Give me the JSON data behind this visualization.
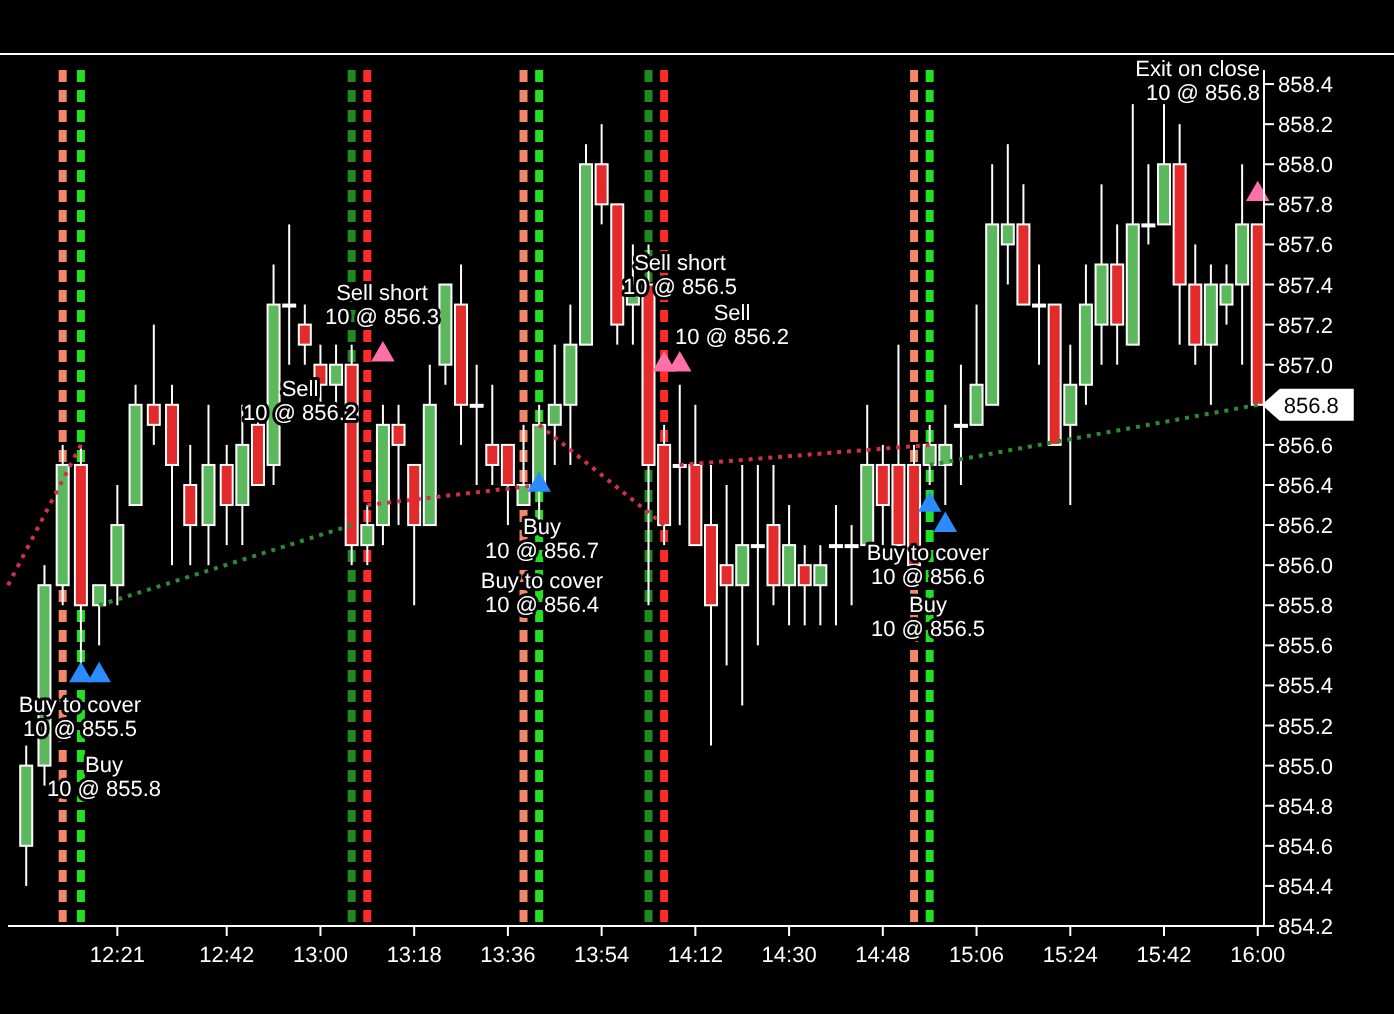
{
  "chart_data": {
    "type": "candlestick",
    "x": [
      12.0583,
      12.1167,
      12.175,
      12.2333,
      12.2917,
      12.35,
      12.4083,
      12.4667,
      12.525,
      12.5833,
      12.6417,
      12.7,
      12.75,
      12.8,
      12.85,
      12.9,
      12.95,
      13,
      13.05,
      13.1,
      13.15,
      13.2,
      13.25,
      13.3,
      13.35,
      13.4,
      13.45,
      13.5,
      13.55,
      13.6,
      13.65,
      13.7,
      13.75,
      13.8,
      13.85,
      13.9,
      13.95,
      14,
      14.05,
      14.1,
      14.15,
      14.2,
      14.25,
      14.3,
      14.35,
      14.4,
      14.45,
      14.5,
      14.55,
      14.6,
      14.65,
      14.7,
      14.75,
      14.8,
      14.85,
      14.9,
      14.95,
      15,
      15.05,
      15.1,
      15.15,
      15.2,
      15.25,
      15.3,
      15.35,
      15.4,
      15.45,
      15.5,
      15.55,
      15.6,
      15.65,
      15.7,
      15.75,
      15.8,
      15.85,
      15.9,
      15.95,
      16
    ],
    "ohlc": [
      [
        854.6,
        855.1,
        854.4,
        855.0
      ],
      [
        855.0,
        856.0,
        854.9,
        855.9
      ],
      [
        855.9,
        856.6,
        855.8,
        856.5
      ],
      [
        856.5,
        856.6,
        855.5,
        855.8
      ],
      [
        855.8,
        855.9,
        855.6,
        855.9
      ],
      [
        855.9,
        856.4,
        855.8,
        856.2
      ],
      [
        856.3,
        856.9,
        856.3,
        856.8
      ],
      [
        856.8,
        857.2,
        856.6,
        856.7
      ],
      [
        856.8,
        856.9,
        856.0,
        856.5
      ],
      [
        856.4,
        856.6,
        856.0,
        856.2
      ],
      [
        856.2,
        856.8,
        856.0,
        856.5
      ],
      [
        856.5,
        856.6,
        856.1,
        856.3
      ],
      [
        856.3,
        856.8,
        856.1,
        856.6
      ],
      [
        856.7,
        856.8,
        856.4,
        856.4
      ],
      [
        856.5,
        857.5,
        856.4,
        857.3
      ],
      [
        857.3,
        857.7,
        857.0,
        857.3
      ],
      [
        857.2,
        857.3,
        857.0,
        857.1
      ],
      [
        857.0,
        857.1,
        856.8,
        856.9
      ],
      [
        856.9,
        857.1,
        856.8,
        857.0
      ],
      [
        857.0,
        857.1,
        856.0,
        856.1
      ],
      [
        856.1,
        856.3,
        856.0,
        856.2
      ],
      [
        856.2,
        856.8,
        856.1,
        856.7
      ],
      [
        856.7,
        856.8,
        856.2,
        856.6
      ],
      [
        856.5,
        856.5,
        855.8,
        856.2
      ],
      [
        856.2,
        857.0,
        856.2,
        856.8
      ],
      [
        857.0,
        857.4,
        856.9,
        857.4
      ],
      [
        857.3,
        857.5,
        856.6,
        856.8
      ],
      [
        856.8,
        857.0,
        856.4,
        856.8
      ],
      [
        856.6,
        856.9,
        856.4,
        856.5
      ],
      [
        856.6,
        856.6,
        856.2,
        856.4
      ],
      [
        856.3,
        856.7,
        856.3,
        856.4
      ],
      [
        856.4,
        856.8,
        856.2,
        856.7
      ],
      [
        856.7,
        857.1,
        856.5,
        856.8
      ],
      [
        856.8,
        857.3,
        856.5,
        857.1
      ],
      [
        857.1,
        858.1,
        857.1,
        858.0
      ],
      [
        858.0,
        858.2,
        857.7,
        857.8
      ],
      [
        857.8,
        857.8,
        857.1,
        857.2
      ],
      [
        857.3,
        857.6,
        857.1,
        857.4
      ],
      [
        857.4,
        857.6,
        855.8,
        856.5
      ],
      [
        856.6,
        856.7,
        856.1,
        856.2
      ],
      [
        856.5,
        856.9,
        856.2,
        856.5
      ],
      [
        856.5,
        856.8,
        856.1,
        856.1
      ],
      [
        856.2,
        856.5,
        855.1,
        855.8
      ],
      [
        856.0,
        856.4,
        855.5,
        855.9
      ],
      [
        855.9,
        856.5,
        855.3,
        856.1
      ],
      [
        856.1,
        856.5,
        855.6,
        856.1
      ],
      [
        856.2,
        856.5,
        855.8,
        855.9
      ],
      [
        855.9,
        856.3,
        855.7,
        856.1
      ],
      [
        856.0,
        856.1,
        855.7,
        855.9
      ],
      [
        855.9,
        856.1,
        855.7,
        856.0
      ],
      [
        856.1,
        856.3,
        855.7,
        856.1
      ],
      [
        856.1,
        856.2,
        855.8,
        856.1
      ],
      [
        856.1,
        856.8,
        856.1,
        856.5
      ],
      [
        856.5,
        856.6,
        856.1,
        856.3
      ],
      [
        856.5,
        857.1,
        856.1,
        856.1
      ],
      [
        856.5,
        856.6,
        855.9,
        856.0
      ],
      [
        856.5,
        856.7,
        856.4,
        856.6
      ],
      [
        856.5,
        856.8,
        856.3,
        856.6
      ],
      [
        856.7,
        857.0,
        856.4,
        856.7
      ],
      [
        856.7,
        857.3,
        856.7,
        856.9
      ],
      [
        856.8,
        858.0,
        856.8,
        857.7
      ],
      [
        857.6,
        858.1,
        857.4,
        857.7
      ],
      [
        857.7,
        857.9,
        857.3,
        857.3
      ],
      [
        857.3,
        857.5,
        857.0,
        857.3
      ],
      [
        857.3,
        857.3,
        856.6,
        856.6
      ],
      [
        856.7,
        857.1,
        856.3,
        856.9
      ],
      [
        856.9,
        857.5,
        856.8,
        857.3
      ],
      [
        857.2,
        857.9,
        857.0,
        857.5
      ],
      [
        857.5,
        857.7,
        857.0,
        857.2
      ],
      [
        857.1,
        858.3,
        857.1,
        857.7
      ],
      [
        857.7,
        858.0,
        857.6,
        857.7
      ],
      [
        857.7,
        858.3,
        857.7,
        858.0
      ],
      [
        858.0,
        858.2,
        857.1,
        857.4
      ],
      [
        857.4,
        857.6,
        857.0,
        857.1
      ],
      [
        857.1,
        857.5,
        856.8,
        857.4
      ],
      [
        857.3,
        857.5,
        857.2,
        857.4
      ],
      [
        857.4,
        858.0,
        857.0,
        857.7
      ],
      [
        857.7,
        857.7,
        856.8,
        856.8
      ]
    ],
    "colors": [
      "#5cb85c",
      "#5cb85c",
      "#5cb85c",
      "#e32b2b",
      "#5cb85c",
      "#5cb85c",
      "#5cb85c",
      "#e32b2b",
      "#e32b2b",
      "#e32b2b",
      "#5cb85c",
      "#e32b2b",
      "#5cb85c",
      "#e32b2b",
      "#5cb85c",
      "#5cb85c",
      "#e32b2b",
      "#e32b2b",
      "#5cb85c",
      "#e32b2b",
      "#5cb85c",
      "#5cb85c",
      "#e32b2b",
      "#e32b2b",
      "#5cb85c",
      "#5cb85c",
      "#e32b2b",
      "#5cb85c",
      "#e32b2b",
      "#e32b2b",
      "#5cb85c",
      "#5cb85c",
      "#5cb85c",
      "#5cb85c",
      "#5cb85c",
      "#e32b2b",
      "#e32b2b",
      "#5cb85c",
      "#e32b2b",
      "#e32b2b",
      "#5cb85c",
      "#e32b2b",
      "#e32b2b",
      "#e32b2b",
      "#5cb85c",
      "#5cb85c",
      "#e32b2b",
      "#5cb85c",
      "#e32b2b",
      "#5cb85c",
      "#5cb85c",
      "#5cb85c",
      "#5cb85c",
      "#e32b2b",
      "#e32b2b",
      "#e32b2b",
      "#5cb85c",
      "#5cb85c",
      "#5cb85c",
      "#5cb85c",
      "#5cb85c",
      "#5cb85c",
      "#e32b2b",
      "#5cb85c",
      "#e32b2b",
      "#5cb85c",
      "#5cb85c",
      "#5cb85c",
      "#e32b2b",
      "#5cb85c",
      "#5cb85c",
      "#5cb85c",
      "#e32b2b",
      "#e32b2b",
      "#5cb85c",
      "#5cb85c",
      "#5cb85c",
      "#e32b2b"
    ],
    "series": [
      {
        "type": "line",
        "color": "#d0304a",
        "line_style": "dotted",
        "x": [
          12.0,
          12.2333
        ],
        "values": [
          855.9,
          856.6
        ]
      },
      {
        "type": "line",
        "color": "#2e8b2e",
        "line_style": "dotted",
        "x": [
          12.2917,
          13.1
        ],
        "values": [
          855.8,
          856.2
        ]
      },
      {
        "type": "line",
        "color": "#d0304a",
        "line_style": "dotted",
        "x": [
          13.15,
          13.7
        ],
        "values": [
          856.3,
          856.4
        ]
      },
      {
        "type": "line",
        "color": "#d0304a",
        "line_style": "dotted",
        "x": [
          13.7,
          14.1
        ],
        "values": [
          856.7,
          856.2
        ]
      },
      {
        "type": "line",
        "color": "#d0304a",
        "line_style": "dotted",
        "x": [
          14.15,
          14.95
        ],
        "values": [
          856.5,
          856.6
        ]
      },
      {
        "type": "line",
        "color": "#2e8b2e",
        "line_style": "dotted",
        "x": [
          14.95,
          16.0
        ],
        "values": [
          856.5,
          856.8
        ]
      },
      {
        "type": "scatter",
        "color": "#2a8cff",
        "marker": "triangle",
        "x": [
          12.2333,
          12.2917,
          13.7,
          14.95,
          15.0
        ],
        "values": [
          855.45,
          855.45,
          856.4,
          856.3,
          856.2
        ]
      },
      {
        "type": "scatter",
        "color": "#ff6fa8",
        "marker": "triangle",
        "x": [
          13.2,
          14.1,
          14.15,
          16.0
        ],
        "values": [
          857.05,
          857.0,
          857.0,
          857.85
        ]
      }
    ],
    "xlim": [
      12.0,
      16.02
    ],
    "xticks": [
      {
        "value": 12.35,
        "label": "12:21"
      },
      {
        "value": 12.7,
        "label": "12:42"
      },
      {
        "value": 13,
        "label": "13:00"
      },
      {
        "value": 13.3,
        "label": "13:18"
      },
      {
        "value": 13.6,
        "label": "13:36"
      },
      {
        "value": 13.9,
        "label": "13:54"
      },
      {
        "value": 14.2,
        "label": "14:12"
      },
      {
        "value": 14.5,
        "label": "14:30"
      },
      {
        "value": 14.8,
        "label": "14:48"
      },
      {
        "value": 15.1,
        "label": "15:06"
      },
      {
        "value": 15.4,
        "label": "15:24"
      },
      {
        "value": 15.7,
        "label": "15:42"
      },
      {
        "value": 16,
        "label": "16:00"
      }
    ],
    "ylim": [
      854.2,
      858.55
    ],
    "yticks": [
      854.2,
      854.4,
      854.6,
      854.8,
      {
        "value": 855,
        "label": "855.0"
      },
      855.2,
      855.4,
      855.6,
      855.8,
      {
        "value": 856,
        "label": "856.0"
      },
      856.2,
      856.4,
      856.6,
      {
        "value": 856.8,
        "label": null
      },
      {
        "value": 857,
        "label": "857.0"
      },
      857.2,
      857.4,
      857.6,
      857.8,
      {
        "value": 858,
        "label": "858.0"
      },
      858.2,
      858.4
    ],
    "ref_lines": [
      {
        "axis": "x",
        "value": 12.175,
        "color": "#f4876a",
        "line_style": "dashed"
      },
      {
        "axis": "x",
        "value": 12.2333,
        "color": "#22e022",
        "line_style": "dashed"
      },
      {
        "axis": "x",
        "value": 13.1,
        "color": "#1f8a1f",
        "line_style": "dashed"
      },
      {
        "axis": "x",
        "value": 13.15,
        "color": "#ff2a2a",
        "line_style": "dashed"
      },
      {
        "axis": "x",
        "value": 13.65,
        "color": "#f4876a",
        "line_style": "dashed"
      },
      {
        "axis": "x",
        "value": 13.7,
        "color": "#22e022",
        "line_style": "dashed"
      },
      {
        "axis": "x",
        "value": 14.05,
        "color": "#1f8a1f",
        "line_style": "dashed"
      },
      {
        "axis": "x",
        "value": 14.1,
        "color": "#ff2a2a",
        "line_style": "dashed"
      },
      {
        "axis": "x",
        "value": 14.9,
        "color": "#f4876a",
        "line_style": "dashed"
      },
      {
        "axis": "x",
        "value": 14.95,
        "color": "#22e022",
        "line_style": "dashed"
      }
    ],
    "annotations": [
      "Buy to cover\n10 @ 855.5",
      "Buy\n10 @ 855.8",
      "Sell short\n10 @ 856.3",
      "Sell\n10 @ 856.2",
      "Buy\n10 @ 856.7",
      "Buy to cover\n10 @ 856.4",
      "Sell short\n10 @ 856.5",
      "Sell\n10 @ 856.2",
      "Buy to cover\n10 @ 856.6",
      "Buy\n10 @ 856.5",
      "Exit on close\n10 @ 856.8",
      {
        "text": "856.8",
        "x": 16.0,
        "y": 856.8
      }
    ]
  }
}
